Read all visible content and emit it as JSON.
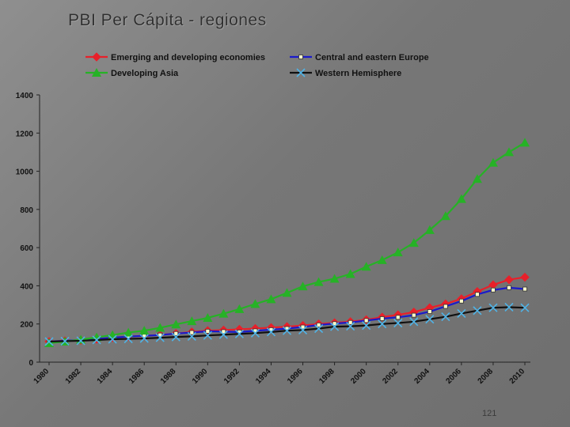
{
  "slide": {
    "title": "PBI Per Cápita - regiones",
    "page_number": "121"
  },
  "chart_data": {
    "type": "line",
    "title": "PBI Per Cápita - regiones",
    "xlabel": "",
    "ylabel": "",
    "ylim": [
      0,
      1400
    ],
    "y_ticks": [
      0,
      200,
      400,
      600,
      800,
      1000,
      1200,
      1400
    ],
    "x_tick_labels": [
      "1980",
      "1982",
      "1984",
      "1986",
      "1988",
      "1990",
      "1992",
      "1994",
      "1996",
      "1998",
      "2000",
      "2002",
      "2004",
      "2006",
      "2008",
      "2010"
    ],
    "x": [
      1980,
      1981,
      1982,
      1983,
      1984,
      1985,
      1986,
      1987,
      1988,
      1989,
      1990,
      1991,
      1992,
      1993,
      1994,
      1995,
      1996,
      1997,
      1998,
      1999,
      2000,
      2001,
      2002,
      2003,
      2004,
      2005,
      2006,
      2007,
      2008,
      2009,
      2010
    ],
    "grid": false,
    "legend": "top",
    "series": [
      {
        "name": "Emerging and developing economies",
        "color": "#e8202a",
        "marker": "diamond",
        "values": [
          108,
          112,
          115,
          120,
          128,
          134,
          138,
          143,
          150,
          158,
          165,
          168,
          172,
          176,
          181,
          186,
          192,
          200,
          206,
          212,
          222,
          236,
          248,
          262,
          285,
          305,
          332,
          370,
          405,
          432,
          445
        ]
      },
      {
        "name": "Central and eastern Europe",
        "color": "#1a1acb",
        "marker": "square",
        "values": [
          108,
          112,
          116,
          122,
          128,
          134,
          138,
          142,
          150,
          155,
          162,
          160,
          158,
          164,
          170,
          176,
          184,
          195,
          202,
          208,
          218,
          228,
          235,
          246,
          265,
          292,
          320,
          355,
          378,
          390,
          383
        ]
      },
      {
        "name": "Developing Asia",
        "color": "#26b226",
        "marker": "triangle",
        "values": [
          100,
          108,
          118,
          130,
          142,
          155,
          165,
          180,
          198,
          215,
          232,
          254,
          278,
          305,
          330,
          363,
          397,
          420,
          437,
          462,
          500,
          535,
          575,
          625,
          692,
          765,
          855,
          960,
          1045,
          1100,
          1150
        ]
      },
      {
        "name": "Western Hemisphere",
        "color": "#111111",
        "marker": "x",
        "values": [
          108,
          110,
          112,
          116,
          120,
          122,
          124,
          128,
          132,
          135,
          140,
          144,
          148,
          152,
          158,
          165,
          168,
          176,
          186,
          188,
          192,
          200,
          205,
          212,
          225,
          238,
          255,
          270,
          285,
          288,
          285
        ]
      }
    ]
  }
}
